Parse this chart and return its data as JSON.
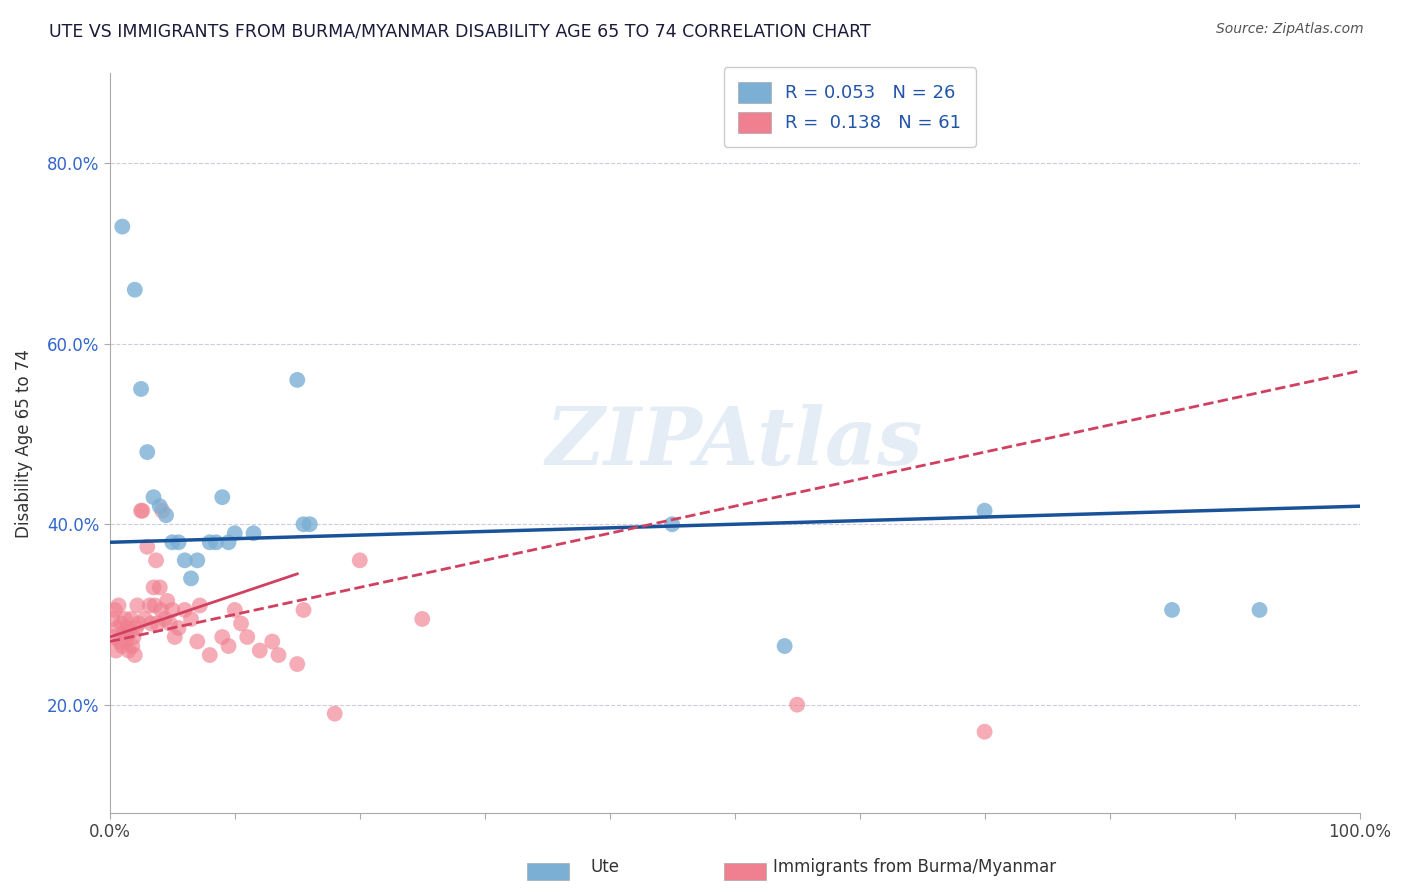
{
  "title": "UTE VS IMMIGRANTS FROM BURMA/MYANMAR DISABILITY AGE 65 TO 74 CORRELATION CHART",
  "source_text": "Source: ZipAtlas.com",
  "ylabel": "Disability Age 65 to 74",
  "xlim": [
    0,
    1.0
  ],
  "ylim": [
    0.08,
    0.9
  ],
  "yticks": [
    0.2,
    0.4,
    0.6,
    0.8
  ],
  "yticklabels": [
    "20.0%",
    "40.0%",
    "60.0%",
    "80.0%"
  ],
  "ute_color": "#7bafd4",
  "immigrants_color": "#f08090",
  "trend_ute_color": "#1a5299",
  "trend_immigrants_color": "#d04060",
  "watermark": "ZIPAtlas",
  "background_color": "#ffffff",
  "grid_color": "#ccccdd",
  "legend_label_ute": "R = 0.053   N = 26",
  "legend_label_imm": "R =  0.138   N = 61",
  "ute_scatter": [
    [
      0.01,
      0.73
    ],
    [
      0.02,
      0.66
    ],
    [
      0.025,
      0.55
    ],
    [
      0.03,
      0.48
    ],
    [
      0.035,
      0.43
    ],
    [
      0.04,
      0.42
    ],
    [
      0.045,
      0.41
    ],
    [
      0.05,
      0.38
    ],
    [
      0.055,
      0.38
    ],
    [
      0.06,
      0.36
    ],
    [
      0.065,
      0.34
    ],
    [
      0.07,
      0.36
    ],
    [
      0.08,
      0.38
    ],
    [
      0.085,
      0.38
    ],
    [
      0.09,
      0.43
    ],
    [
      0.095,
      0.38
    ],
    [
      0.1,
      0.39
    ],
    [
      0.115,
      0.39
    ],
    [
      0.15,
      0.56
    ],
    [
      0.155,
      0.4
    ],
    [
      0.16,
      0.4
    ],
    [
      0.45,
      0.4
    ],
    [
      0.54,
      0.265
    ],
    [
      0.7,
      0.415
    ],
    [
      0.85,
      0.305
    ],
    [
      0.92,
      0.305
    ]
  ],
  "immigrants_scatter": [
    [
      0.002,
      0.295
    ],
    [
      0.003,
      0.275
    ],
    [
      0.004,
      0.305
    ],
    [
      0.005,
      0.26
    ],
    [
      0.006,
      0.285
    ],
    [
      0.007,
      0.31
    ],
    [
      0.008,
      0.27
    ],
    [
      0.009,
      0.29
    ],
    [
      0.01,
      0.265
    ],
    [
      0.011,
      0.28
    ],
    [
      0.012,
      0.295
    ],
    [
      0.013,
      0.27
    ],
    [
      0.014,
      0.285
    ],
    [
      0.015,
      0.26
    ],
    [
      0.016,
      0.28
    ],
    [
      0.017,
      0.295
    ],
    [
      0.018,
      0.265
    ],
    [
      0.019,
      0.275
    ],
    [
      0.02,
      0.255
    ],
    [
      0.021,
      0.285
    ],
    [
      0.022,
      0.31
    ],
    [
      0.023,
      0.29
    ],
    [
      0.025,
      0.415
    ],
    [
      0.026,
      0.415
    ],
    [
      0.028,
      0.295
    ],
    [
      0.03,
      0.375
    ],
    [
      0.032,
      0.31
    ],
    [
      0.033,
      0.29
    ],
    [
      0.035,
      0.33
    ],
    [
      0.036,
      0.31
    ],
    [
      0.037,
      0.36
    ],
    [
      0.038,
      0.29
    ],
    [
      0.04,
      0.33
    ],
    [
      0.041,
      0.305
    ],
    [
      0.042,
      0.415
    ],
    [
      0.044,
      0.295
    ],
    [
      0.046,
      0.315
    ],
    [
      0.048,
      0.29
    ],
    [
      0.05,
      0.305
    ],
    [
      0.052,
      0.275
    ],
    [
      0.055,
      0.285
    ],
    [
      0.06,
      0.305
    ],
    [
      0.065,
      0.295
    ],
    [
      0.07,
      0.27
    ],
    [
      0.072,
      0.31
    ],
    [
      0.08,
      0.255
    ],
    [
      0.09,
      0.275
    ],
    [
      0.095,
      0.265
    ],
    [
      0.1,
      0.305
    ],
    [
      0.105,
      0.29
    ],
    [
      0.11,
      0.275
    ],
    [
      0.12,
      0.26
    ],
    [
      0.13,
      0.27
    ],
    [
      0.135,
      0.255
    ],
    [
      0.15,
      0.245
    ],
    [
      0.155,
      0.305
    ],
    [
      0.18,
      0.19
    ],
    [
      0.2,
      0.36
    ],
    [
      0.25,
      0.295
    ],
    [
      0.55,
      0.2
    ],
    [
      0.7,
      0.17
    ]
  ],
  "ute_trend": [
    0.0,
    1.0,
    0.38,
    0.42
  ],
  "imm_trend": [
    0.0,
    1.0,
    0.27,
    0.57
  ]
}
